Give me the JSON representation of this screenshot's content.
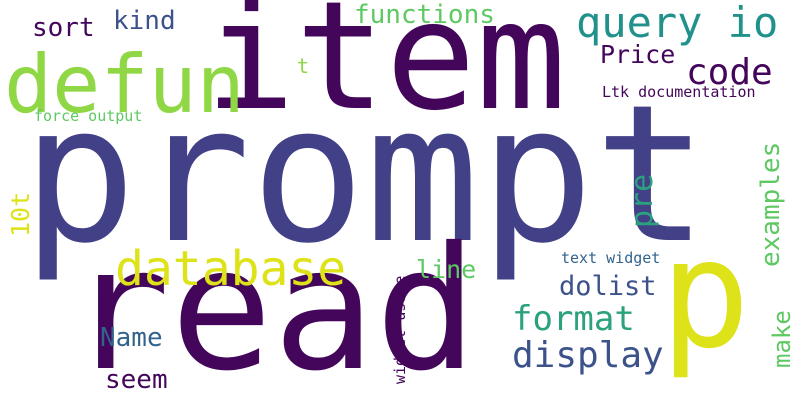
{
  "palette": {
    "dark_purple": "#44065A",
    "indigo": "#424086",
    "slate_blue": "#33638D",
    "teal": "#21918C",
    "sea_green": "#2BA17E",
    "green": "#5EC962",
    "lime": "#8FD744",
    "yellow": "#DDE318",
    "dark_slate": "#3B528B"
  },
  "words": [
    {
      "text": "prompt"
    },
    {
      "text": "item"
    },
    {
      "text": "read"
    },
    {
      "text": "p"
    },
    {
      "text": "defun"
    },
    {
      "text": "database"
    },
    {
      "text": "query io"
    },
    {
      "text": "code"
    },
    {
      "text": "display"
    },
    {
      "text": "format"
    },
    {
      "text": "functions"
    },
    {
      "text": "kind"
    },
    {
      "text": "sort"
    },
    {
      "text": "Price"
    },
    {
      "text": "pre"
    },
    {
      "text": "examples"
    },
    {
      "text": "dolist"
    },
    {
      "text": "line"
    },
    {
      "text": "Name"
    },
    {
      "text": "seem"
    },
    {
      "text": "make"
    },
    {
      "text": "10t"
    },
    {
      "text": "t"
    },
    {
      "text": "Ltk documentation"
    },
    {
      "text": "force output"
    },
    {
      "text": "text widget"
    },
    {
      "text": "widget usage"
    }
  ]
}
